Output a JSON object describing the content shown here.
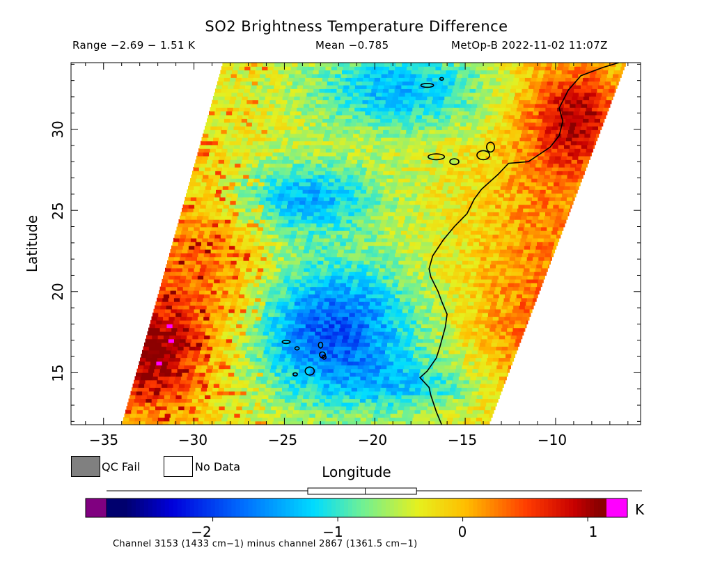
{
  "chart_data": {
    "type": "heatmap",
    "title": "SO2 Brightness Temperature Difference",
    "range_text": "Range −2.69 − 1.51 K",
    "mean_text": "Mean −0.785",
    "satellite_text": "MetOp-B 2022-11-02 11:07Z",
    "xlabel": "Longitude",
    "ylabel": "Latitude",
    "xlim": [
      -36.8,
      -5.3
    ],
    "ylim": [
      11.8,
      34.1
    ],
    "x_ticks": [
      -35,
      -30,
      -25,
      -20,
      -15,
      -10
    ],
    "x_tick_labels": [
      "−35",
      "−30",
      "−25",
      "−20",
      "−15",
      "−10"
    ],
    "y_ticks": [
      15,
      20,
      25,
      30
    ],
    "y_tick_labels": [
      "15",
      "20",
      "25",
      "30"
    ],
    "range": [
      -2.69,
      1.51
    ],
    "mean": -0.785,
    "units": "K",
    "colorbar": {
      "min": -2.85,
      "max": 1.15,
      "ticks": [
        -2,
        -1,
        0,
        1
      ],
      "tick_labels": [
        "−2",
        "−1",
        "0",
        "1"
      ],
      "units_label": "K",
      "boxplot": {
        "q1": -1.24,
        "median": -0.78,
        "q3": -0.37,
        "whisker_low": -2.69,
        "whisker_high": 1.51
      }
    },
    "legend": [
      {
        "label": "QC Fail",
        "color": "#808080"
      },
      {
        "label": "No Data",
        "color": "#ffffff"
      }
    ],
    "footer": "Channel 3153 (1433 cm−1) minus channel 2867 (1361.5 cm−1)",
    "swath": {
      "bottom_left": [
        -34.0,
        11.8
      ],
      "top_left": [
        -28.4,
        34.1
      ],
      "top_right": [
        -6.1,
        34.1
      ],
      "bottom_right": [
        -13.7,
        11.8
      ]
    },
    "anomaly_regions": [
      {
        "description": "low SO2 BTD band",
        "lon": -22.5,
        "lat": 17.5,
        "value": -2.3
      },
      {
        "description": "low SO2 BTD band",
        "lon": -23.5,
        "lat": 26.0,
        "value": -1.9
      },
      {
        "description": "low SO2 BTD band",
        "lon": -19.0,
        "lat": 32.5,
        "value": -1.7
      },
      {
        "description": "high values west edge",
        "lon": -32.5,
        "lat": 16.0,
        "value": 1.0
      },
      {
        "description": "high values coast",
        "lon": -9.0,
        "lat": 30.5,
        "value": 0.9
      }
    ],
    "grid": false
  }
}
